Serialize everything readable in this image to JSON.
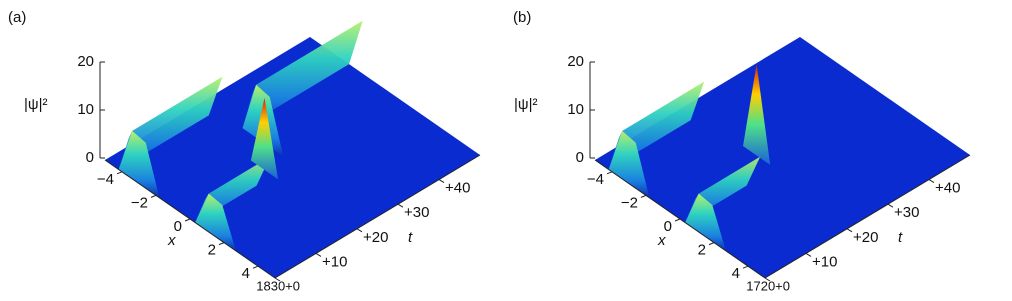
{
  "chart_data": [
    {
      "type": "surface",
      "panel_label": "(a)",
      "zlabel": "|ψ|²",
      "xlabel": "x",
      "tlabel": "t",
      "zlim": [
        0,
        20
      ],
      "zticks": [
        0,
        10,
        20
      ],
      "xlim": [
        -5,
        5
      ],
      "xticks": [
        {
          "value": -4,
          "label": "−4"
        },
        {
          "value": -2,
          "label": "−2"
        },
        0,
        2,
        4
      ],
      "tlim": [
        1830,
        1880
      ],
      "tticks": [
        {
          "value": 1830,
          "label": "1830+0"
        },
        {
          "value": 1840,
          "label": "+10"
        },
        {
          "value": 1850,
          "label": "+20"
        },
        {
          "value": 1860,
          "label": "+30"
        },
        {
          "value": 1870,
          "label": "+40"
        }
      ]
    },
    {
      "type": "surface",
      "panel_label": "(b)",
      "zlabel": "|ψ|²",
      "xlabel": "x",
      "tlabel": "t",
      "zlim": [
        0,
        20
      ],
      "zticks": [
        0,
        10,
        20
      ],
      "xlim": [
        -5,
        5
      ],
      "xticks": [
        {
          "value": -4,
          "label": "−4"
        },
        {
          "value": -2,
          "label": "−2"
        },
        0,
        2,
        4
      ],
      "tlim": [
        1720,
        1770
      ],
      "tticks": [
        {
          "value": 1720,
          "label": "1720+0"
        },
        {
          "value": 1730,
          "label": "+10"
        },
        {
          "value": 1740,
          "label": "+20"
        },
        {
          "value": 1750,
          "label": "+30"
        },
        {
          "value": 1760,
          "label": "+40"
        }
      ]
    }
  ]
}
